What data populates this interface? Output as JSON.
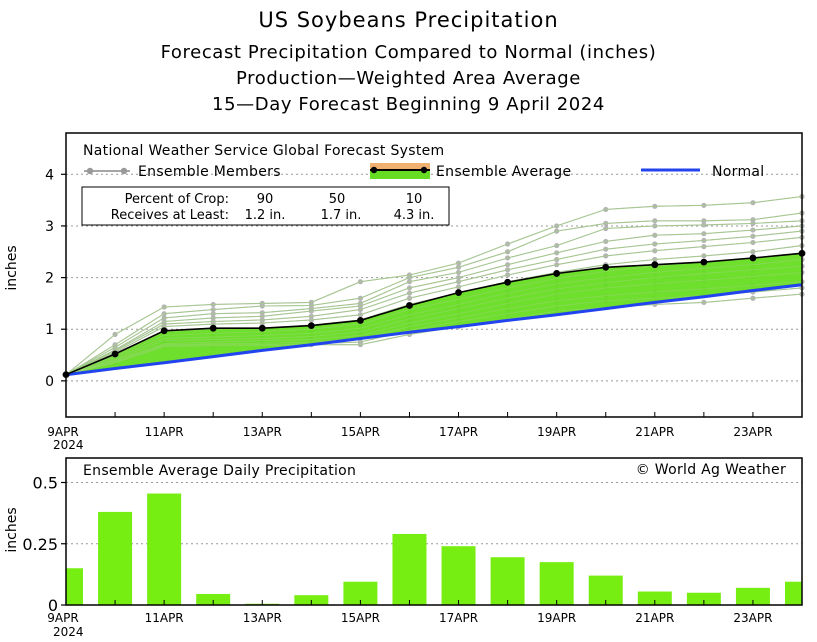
{
  "titles": {
    "line1": "US Soybeans Precipitation",
    "line2": "Forecast Precipitation Compared to Normal (inches)",
    "line3": "Production—Weighted Area Average",
    "line4": "15—Day Forecast Beginning 9 April 2024"
  },
  "colors": {
    "ensemble_fill": "#66dd22",
    "ensemble_line": "#000000",
    "normal_line": "#2244ee",
    "members": "#b4b4b4",
    "bars": "#77ee11",
    "average_highlight": "#f0b070"
  },
  "legend": {
    "source": "National Weather Service Global Forecast System",
    "members_label": "Ensemble Members",
    "average_label": "Ensemble Average",
    "normal_label": "Normal"
  },
  "crop_table": {
    "row1_label": "Percent of Crop:",
    "row2_label": "Receives at Least:",
    "percents": [
      "90",
      "50",
      "10"
    ],
    "amounts": [
      "1.2 in.",
      "1.7 in.",
      "4.3 in."
    ]
  },
  "chart_data": [
    {
      "type": "line",
      "title": "Forecast Precipitation Compared to Normal (inches)",
      "xlabel": "",
      "ylabel": "inches",
      "x": [
        "9APR",
        "10APR",
        "11APR",
        "12APR",
        "13APR",
        "14APR",
        "15APR",
        "16APR",
        "17APR",
        "18APR",
        "19APR",
        "20APR",
        "21APR",
        "22APR",
        "23APR",
        "24APR"
      ],
      "xtick_labels": [
        "9APR",
        "11APR",
        "13APR",
        "15APR",
        "17APR",
        "19APR",
        "21APR",
        "23APR"
      ],
      "year_label": "2024",
      "ylim": [
        -0.7,
        4.8
      ],
      "yticks": [
        0,
        1,
        2,
        3,
        4
      ],
      "grid": "dotted",
      "series": [
        {
          "name": "Ensemble Average",
          "values": [
            0.12,
            0.52,
            0.97,
            1.02,
            1.02,
            1.07,
            1.17,
            1.46,
            1.71,
            1.91,
            2.08,
            2.2,
            2.25,
            2.3,
            2.38,
            2.47
          ]
        },
        {
          "name": "Normal",
          "values": [
            0.12,
            0.24,
            0.35,
            0.47,
            0.59,
            0.7,
            0.82,
            0.94,
            1.05,
            1.17,
            1.28,
            1.4,
            1.52,
            1.63,
            1.75,
            1.86
          ]
        }
      ],
      "members": [
        [
          0.12,
          0.9,
          1.43,
          1.48,
          1.5,
          1.52,
          1.92,
          2.05,
          2.28,
          2.65,
          3.0,
          3.32,
          3.38,
          3.4,
          3.45,
          3.57
        ],
        [
          0.12,
          0.7,
          1.3,
          1.38,
          1.45,
          1.46,
          1.6,
          2.0,
          2.2,
          2.5,
          2.9,
          3.05,
          3.1,
          3.1,
          3.12,
          3.25
        ],
        [
          0.12,
          0.65,
          1.22,
          1.3,
          1.32,
          1.4,
          1.5,
          1.92,
          2.1,
          2.38,
          2.62,
          2.95,
          3.0,
          3.02,
          3.05,
          3.1
        ],
        [
          0.12,
          0.6,
          1.15,
          1.22,
          1.25,
          1.35,
          1.45,
          1.8,
          2.0,
          2.25,
          2.48,
          2.7,
          2.82,
          2.85,
          2.92,
          3.0
        ],
        [
          0.12,
          0.58,
          1.1,
          1.15,
          1.18,
          1.25,
          1.38,
          1.7,
          1.92,
          2.15,
          2.35,
          2.55,
          2.65,
          2.72,
          2.8,
          2.9
        ],
        [
          0.12,
          0.55,
          1.05,
          1.1,
          1.12,
          1.18,
          1.28,
          1.6,
          1.82,
          2.05,
          2.25,
          2.42,
          2.52,
          2.6,
          2.68,
          2.78
        ],
        [
          0.12,
          0.5,
          0.95,
          1.0,
          1.02,
          1.08,
          1.18,
          1.48,
          1.7,
          1.92,
          2.1,
          2.25,
          2.35,
          2.42,
          2.5,
          2.62
        ],
        [
          0.12,
          0.48,
          0.88,
          0.92,
          0.95,
          1.0,
          1.1,
          1.38,
          1.58,
          1.8,
          1.98,
          2.12,
          2.22,
          2.3,
          2.38,
          2.48
        ],
        [
          0.12,
          0.45,
          0.82,
          0.85,
          0.88,
          0.92,
          1.02,
          1.28,
          1.48,
          1.7,
          1.88,
          2.0,
          2.1,
          2.18,
          2.25,
          2.35
        ],
        [
          0.12,
          0.42,
          0.78,
          0.8,
          0.82,
          0.86,
          0.95,
          1.2,
          1.4,
          1.6,
          1.78,
          1.9,
          2.0,
          2.08,
          2.15,
          2.22
        ],
        [
          0.12,
          0.4,
          0.72,
          0.75,
          0.78,
          0.8,
          0.88,
          1.12,
          1.3,
          1.5,
          1.68,
          1.8,
          1.88,
          1.95,
          2.02,
          2.1
        ],
        [
          0.12,
          0.38,
          0.7,
          0.72,
          0.73,
          0.75,
          0.82,
          1.05,
          1.22,
          1.4,
          1.55,
          1.65,
          1.72,
          1.78,
          1.85,
          1.92
        ],
        [
          0.12,
          0.36,
          0.68,
          0.7,
          0.7,
          0.72,
          0.75,
          0.98,
          1.15,
          1.3,
          1.45,
          1.55,
          1.6,
          1.65,
          1.72,
          1.8
        ],
        [
          0.12,
          0.35,
          0.66,
          0.68,
          0.68,
          0.7,
          0.7,
          0.9,
          1.05,
          1.2,
          1.35,
          1.42,
          1.48,
          1.52,
          1.6,
          1.68
        ]
      ]
    },
    {
      "type": "bar",
      "title": "Ensemble Average Daily Precipitation",
      "ylabel": "inches",
      "categories": [
        "9APR",
        "10APR",
        "11APR",
        "12APR",
        "13APR",
        "14APR",
        "15APR",
        "16APR",
        "17APR",
        "18APR",
        "19APR",
        "20APR",
        "21APR",
        "22APR",
        "23APR",
        "24APR"
      ],
      "xtick_labels": [
        "9APR",
        "11APR",
        "13APR",
        "15APR",
        "17APR",
        "19APR",
        "21APR",
        "23APR"
      ],
      "year_label": "2024",
      "values": [
        0.15,
        0.38,
        0.455,
        0.045,
        0.005,
        0.04,
        0.095,
        0.29,
        0.24,
        0.195,
        0.175,
        0.12,
        0.055,
        0.05,
        0.07,
        0.095
      ],
      "ylim": [
        0,
        0.6
      ],
      "yticks": [
        0,
        0.25,
        0.5
      ],
      "ytick_labels": [
        "0",
        "0.25",
        "0.5"
      ],
      "watermark": "© World Ag Weather"
    }
  ]
}
